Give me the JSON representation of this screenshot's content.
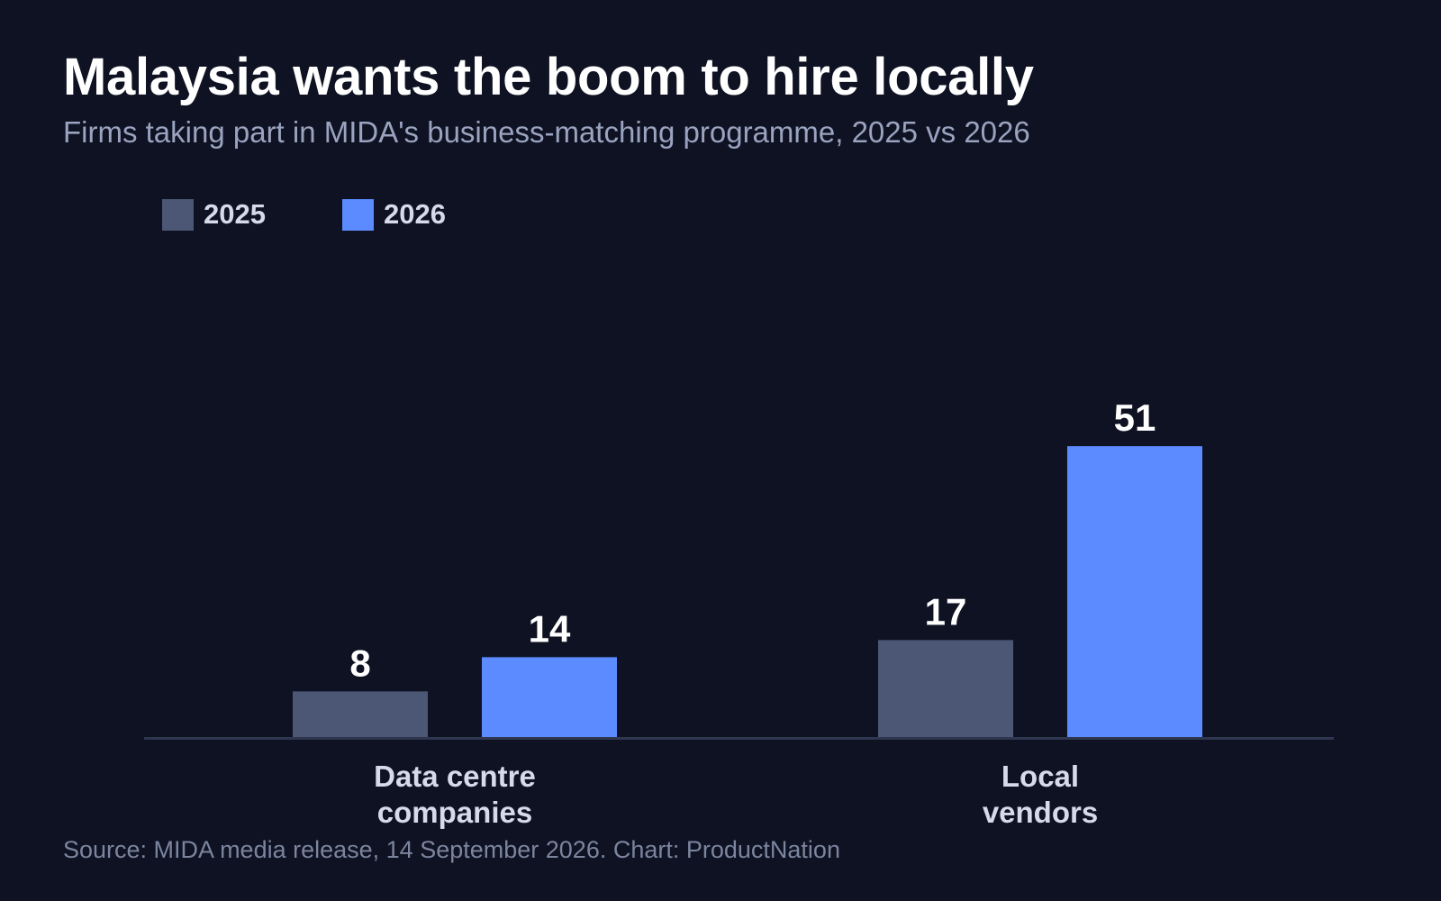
{
  "header": {
    "title": "Malaysia wants the boom to hire locally",
    "subtitle": "Firms taking part in MIDA's business-matching programme, 2025 vs 2026"
  },
  "footer": {
    "source": "Source: MIDA media release, 14 September 2026. Chart: ProductNation"
  },
  "colors": {
    "background": "#0e1222",
    "series_2025": "#4c5775",
    "series_2026": "#5b8bff",
    "axis": "#2e3650",
    "category_label": "#d6dbea",
    "legend_label": "#d6dbea",
    "value_label": "#ffffff"
  },
  "chart_data": {
    "type": "bar",
    "title": "Malaysia wants the boom to hire locally",
    "subtitle": "Firms taking part in MIDA's business-matching programme, 2025 vs 2026",
    "categories": [
      [
        "Data centre",
        "companies"
      ],
      [
        "Local",
        "vendors"
      ]
    ],
    "series": [
      {
        "name": "2025",
        "values": [
          8,
          17
        ]
      },
      {
        "name": "2026",
        "values": [
          14,
          51
        ]
      }
    ],
    "xlabel": "",
    "ylabel": "",
    "ylim": [
      0,
      55
    ],
    "grid": false,
    "legend": "top-left",
    "data_labels": true
  }
}
